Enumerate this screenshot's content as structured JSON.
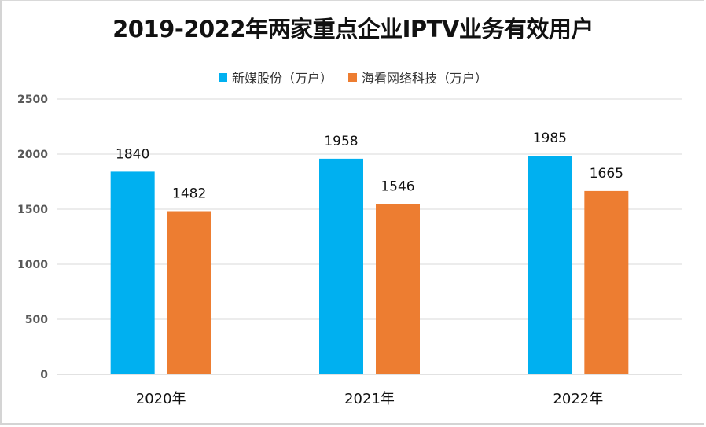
{
  "chart_data": {
    "type": "bar",
    "title": "2019-2022年两家重点企业IPTV业务有效用户",
    "xlabel": "",
    "ylabel": "",
    "categories": [
      "2020年",
      "2021年",
      "2022年"
    ],
    "series": [
      {
        "name": "新媒股份（万户）",
        "color": "#00b0f0",
        "values": [
          1840,
          1958,
          1985
        ]
      },
      {
        "name": "海看网络科技（万户）",
        "color": "#ed7d31",
        "values": [
          1482,
          1546,
          1665
        ]
      }
    ],
    "ylim": [
      0,
      2500
    ],
    "yticks": [
      0,
      500,
      1000,
      1500,
      2000,
      2500
    ],
    "grid": true,
    "legend_position": "top",
    "data_labels": true
  }
}
